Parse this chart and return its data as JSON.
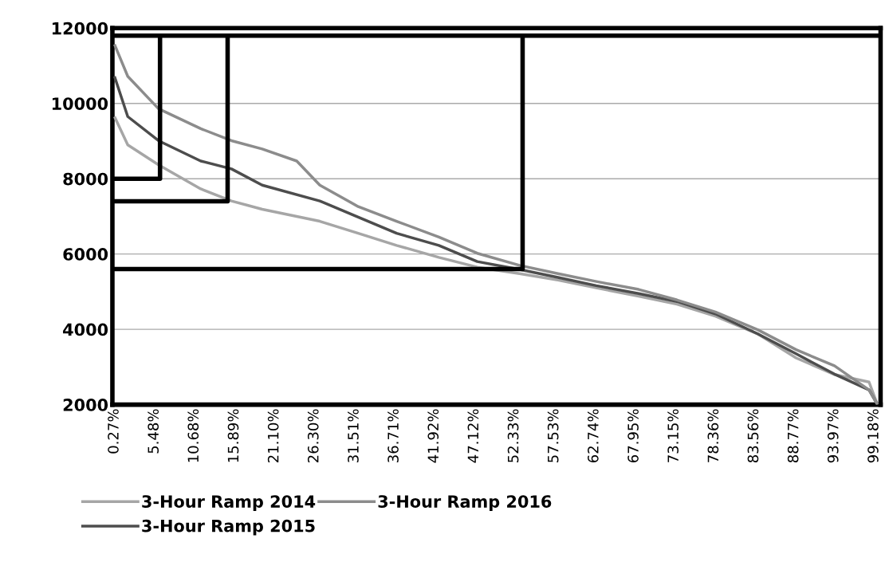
{
  "chart_data": {
    "type": "line",
    "xlim": [
      0,
      100
    ],
    "ylim": [
      2000,
      12000
    ],
    "xticks": [
      {
        "value": 0.27,
        "label": "0.27%"
      },
      {
        "value": 5.48,
        "label": "5.48%"
      },
      {
        "value": 10.68,
        "label": "10.68%"
      },
      {
        "value": 15.89,
        "label": "15.89%"
      },
      {
        "value": 21.1,
        "label": "21.10%"
      },
      {
        "value": 26.3,
        "label": "26.30%"
      },
      {
        "value": 31.51,
        "label": "31.51%"
      },
      {
        "value": 36.71,
        "label": "36.71%"
      },
      {
        "value": 41.92,
        "label": "41.92%"
      },
      {
        "value": 47.12,
        "label": "47.12%"
      },
      {
        "value": 52.33,
        "label": "52.33%"
      },
      {
        "value": 57.53,
        "label": "57.53%"
      },
      {
        "value": 62.74,
        "label": "62.74%"
      },
      {
        "value": 67.95,
        "label": "67.95%"
      },
      {
        "value": 73.15,
        "label": "73.15%"
      },
      {
        "value": 78.36,
        "label": "78.36%"
      },
      {
        "value": 83.56,
        "label": "83.56%"
      },
      {
        "value": 88.77,
        "label": "88.77%"
      },
      {
        "value": 93.97,
        "label": "93.97%"
      },
      {
        "value": 99.18,
        "label": "99.18%"
      }
    ],
    "yticks": [
      2000,
      4000,
      6000,
      8000,
      10000,
      12000
    ],
    "grid": "y",
    "legend": "bottom",
    "marker": "none",
    "line_style": "solid",
    "series": [
      {
        "name": "3-Hour Ramp 2014",
        "color": "#a6a6a6",
        "x": [
          0.27,
          2,
          6,
          11.5,
          15.5,
          19.5,
          27,
          32,
          37,
          42.5,
          47.5,
          53,
          58,
          63,
          68.5,
          73.5,
          78.5,
          84,
          89,
          94,
          98.5,
          99.6
        ],
        "values": [
          9650,
          8900,
          8370,
          7730,
          7410,
          7190,
          6870,
          6550,
          6230,
          5910,
          5650,
          5480,
          5310,
          5100,
          4880,
          4670,
          4350,
          3880,
          3240,
          2800,
          2600,
          2000
        ]
      },
      {
        "name": "3-Hour Ramp 2015",
        "color": "#4d4d4d",
        "x": [
          0.27,
          2,
          6,
          11.5,
          15.5,
          19.5,
          27,
          32,
          37,
          42.5,
          47.5,
          53,
          58,
          63,
          68.5,
          73.5,
          78.5,
          84,
          89,
          94,
          98.5,
          99.6
        ],
        "values": [
          10720,
          9650,
          9010,
          8470,
          8260,
          7830,
          7410,
          6980,
          6550,
          6230,
          5800,
          5590,
          5380,
          5160,
          4950,
          4740,
          4410,
          3880,
          3350,
          2810,
          2390,
          2000
        ]
      },
      {
        "name": "3-Hour Ramp 2016",
        "color": "#8c8c8c",
        "x": [
          0.27,
          2,
          6,
          11.5,
          15.5,
          19.5,
          24,
          27,
          32,
          37,
          42.5,
          47.5,
          53,
          58,
          63,
          68.5,
          73.5,
          78.5,
          84,
          89,
          94,
          98.5,
          99.6
        ],
        "values": [
          11570,
          10720,
          9860,
          9330,
          9010,
          8790,
          8470,
          7830,
          7260,
          6870,
          6450,
          6020,
          5700,
          5480,
          5270,
          5060,
          4780,
          4460,
          3990,
          3460,
          3030,
          2390,
          2000
        ]
      },
      {
        "color": "#000000",
        "x": [
          0.27,
          6.2,
          6.2
        ],
        "values": [
          8000,
          8000,
          11800
        ]
      },
      {
        "color": "#000000",
        "x": [
          0.27,
          15,
          15
        ],
        "values": [
          7400,
          7400,
          11800
        ]
      },
      {
        "color": "#000000",
        "x": [
          0.27,
          53.4,
          53.4
        ],
        "values": [
          5600,
          5600,
          11800
        ]
      },
      {
        "color": "#000000",
        "x": [
          0.27,
          99.9
        ],
        "values": [
          11800,
          11800
        ]
      }
    ]
  }
}
